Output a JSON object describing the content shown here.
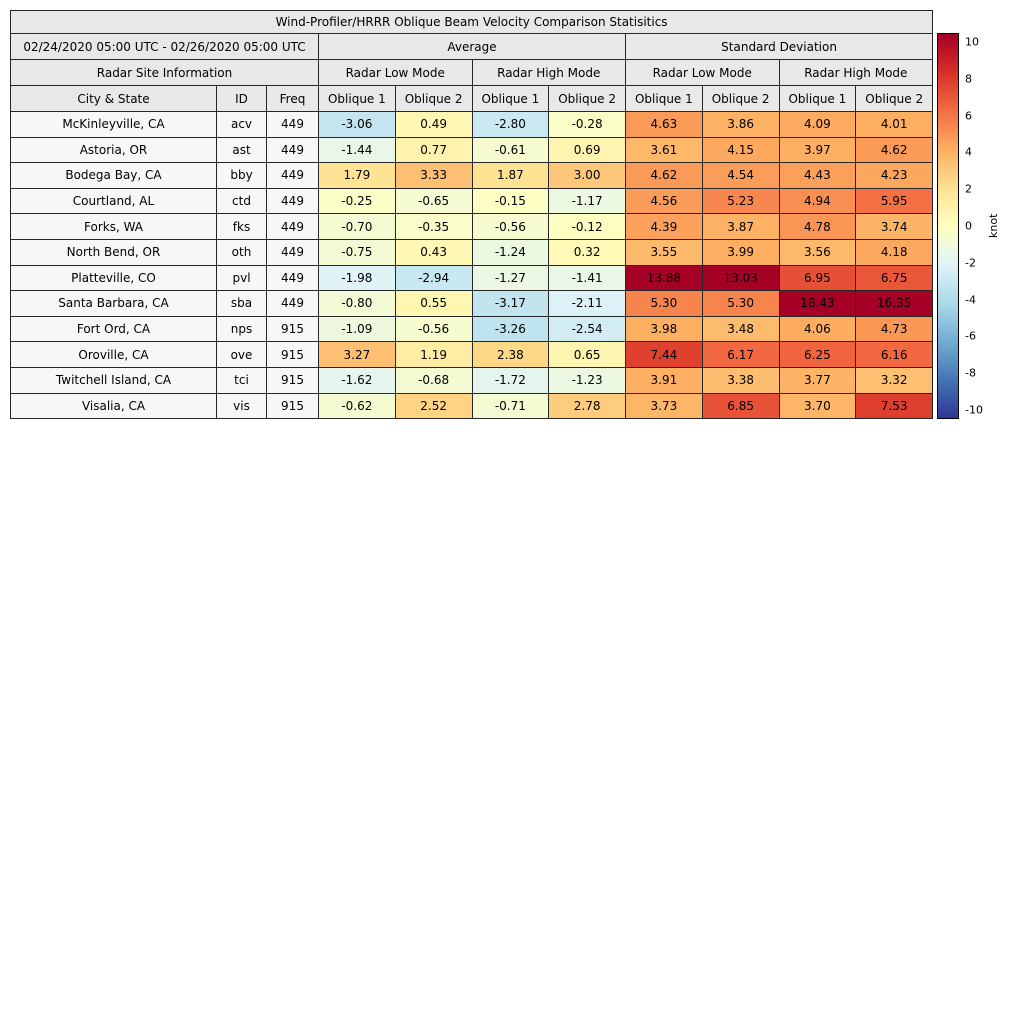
{
  "chart_data": {
    "type": "heatmap",
    "title": "Wind-Profiler/HRRR Oblique Beam Velocity Comparison Statisitics",
    "date_range": "02/24/2020 05:00 UTC - 02/26/2020 05:00 UTC",
    "group_headers": {
      "site_info": "Radar Site Information",
      "average": "Average",
      "standard_deviation": "Standard Deviation"
    },
    "subgroups": [
      "Radar Low Mode",
      "Radar High Mode",
      "Radar Low Mode",
      "Radar High Mode"
    ],
    "columns": [
      "City & State",
      "ID",
      "Freq",
      "Oblique 1",
      "Oblique 2",
      "Oblique 1",
      "Oblique 2",
      "Oblique 1",
      "Oblique 2",
      "Oblique 1",
      "Oblique 2"
    ],
    "rows": [
      {
        "city": "McKinleyville, CA",
        "id": "acv",
        "freq": 449,
        "values": [
          -3.06,
          0.49,
          -2.8,
          -0.28,
          4.63,
          3.86,
          4.09,
          4.01
        ]
      },
      {
        "city": "Astoria, OR",
        "id": "ast",
        "freq": 449,
        "values": [
          -1.44,
          0.77,
          -0.61,
          0.69,
          3.61,
          4.15,
          3.97,
          4.62
        ]
      },
      {
        "city": "Bodega Bay, CA",
        "id": "bby",
        "freq": 449,
        "values": [
          1.79,
          3.33,
          1.87,
          3.0,
          4.62,
          4.54,
          4.43,
          4.23
        ]
      },
      {
        "city": "Courtland, AL",
        "id": "ctd",
        "freq": 449,
        "values": [
          -0.25,
          -0.65,
          -0.15,
          -1.17,
          4.56,
          5.23,
          4.94,
          5.95
        ]
      },
      {
        "city": "Forks, WA",
        "id": "fks",
        "freq": 449,
        "values": [
          -0.7,
          -0.35,
          -0.56,
          -0.12,
          4.39,
          3.87,
          4.78,
          3.74
        ]
      },
      {
        "city": "North Bend, OR",
        "id": "oth",
        "freq": 449,
        "values": [
          -0.75,
          0.43,
          -1.24,
          0.32,
          3.55,
          3.99,
          3.56,
          4.18
        ]
      },
      {
        "city": "Platteville, CO",
        "id": "pvl",
        "freq": 449,
        "values": [
          -1.98,
          -2.94,
          -1.27,
          -1.41,
          13.88,
          13.03,
          6.95,
          6.75
        ]
      },
      {
        "city": "Santa Barbara, CA",
        "id": "sba",
        "freq": 449,
        "values": [
          -0.8,
          0.55,
          -3.17,
          -2.11,
          5.3,
          5.3,
          18.43,
          16.35
        ]
      },
      {
        "city": "Fort Ord, CA",
        "id": "nps",
        "freq": 915,
        "values": [
          -1.09,
          -0.56,
          -3.26,
          -2.54,
          3.98,
          3.48,
          4.06,
          4.73
        ]
      },
      {
        "city": "Oroville, CA",
        "id": "ove",
        "freq": 915,
        "values": [
          3.27,
          1.19,
          2.38,
          0.65,
          7.44,
          6.17,
          6.25,
          6.16
        ]
      },
      {
        "city": "Twitchell Island, CA",
        "id": "tci",
        "freq": 915,
        "values": [
          -1.62,
          -0.68,
          -1.72,
          -1.23,
          3.91,
          3.38,
          3.77,
          3.32
        ]
      },
      {
        "city": "Visalia, CA",
        "id": "vis",
        "freq": 915,
        "values": [
          -0.62,
          2.52,
          -0.71,
          2.78,
          3.73,
          6.85,
          3.7,
          7.53
        ]
      }
    ],
    "colorbar": {
      "label": "knot",
      "vmin": -10,
      "vmax": 10,
      "ticks": [
        10,
        8,
        6,
        4,
        2,
        0,
        -2,
        -4,
        -6,
        -8,
        -10
      ],
      "stops": [
        "#313695",
        "#4575b4",
        "#74add1",
        "#abd9e9",
        "#e0f3f8",
        "#ffffbf",
        "#fee090",
        "#fdae61",
        "#f46d43",
        "#d73027",
        "#a50026"
      ]
    },
    "colors": {
      "header_bg": "#e8e8e8",
      "site_bg": "#f7f7f7",
      "border": "#262626"
    }
  }
}
